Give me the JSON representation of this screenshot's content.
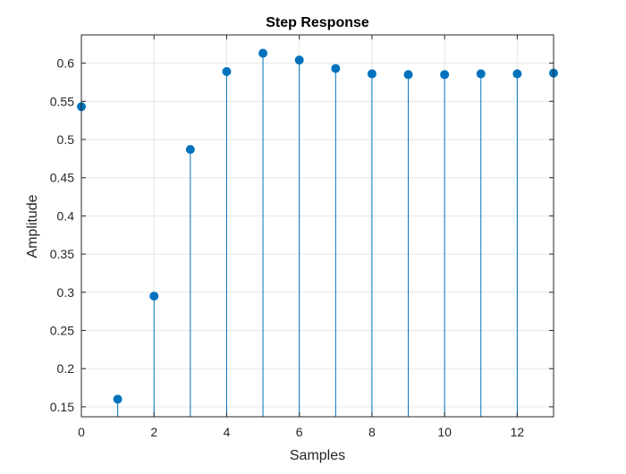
{
  "chart_data": {
    "type": "stem",
    "title": "Step Response",
    "xlabel": "Samples",
    "ylabel": "Amplitude",
    "xlim": [
      0,
      13
    ],
    "ylim": [
      0.137,
      0.637
    ],
    "grid": true,
    "xticks": [
      0,
      2,
      4,
      6,
      8,
      10,
      12
    ],
    "xtick_labels": [
      "0",
      "2",
      "4",
      "6",
      "8",
      "10",
      "12"
    ],
    "yticks": [
      0.15,
      0.2,
      0.25,
      0.3,
      0.35,
      0.4,
      0.45,
      0.5,
      0.55,
      0.6
    ],
    "ytick_labels": [
      "0.15",
      "0.2",
      "0.25",
      "0.3",
      "0.35",
      "0.4",
      "0.45",
      "0.5",
      "0.55",
      "0.6"
    ],
    "color": "#0072BD",
    "x": [
      0,
      1,
      2,
      3,
      4,
      5,
      6,
      7,
      8,
      9,
      10,
      11,
      12,
      13
    ],
    "y": [
      0.543,
      0.16,
      0.295,
      0.487,
      0.589,
      0.613,
      0.604,
      0.593,
      0.586,
      0.585,
      0.585,
      0.586,
      0.586,
      0.587
    ]
  }
}
